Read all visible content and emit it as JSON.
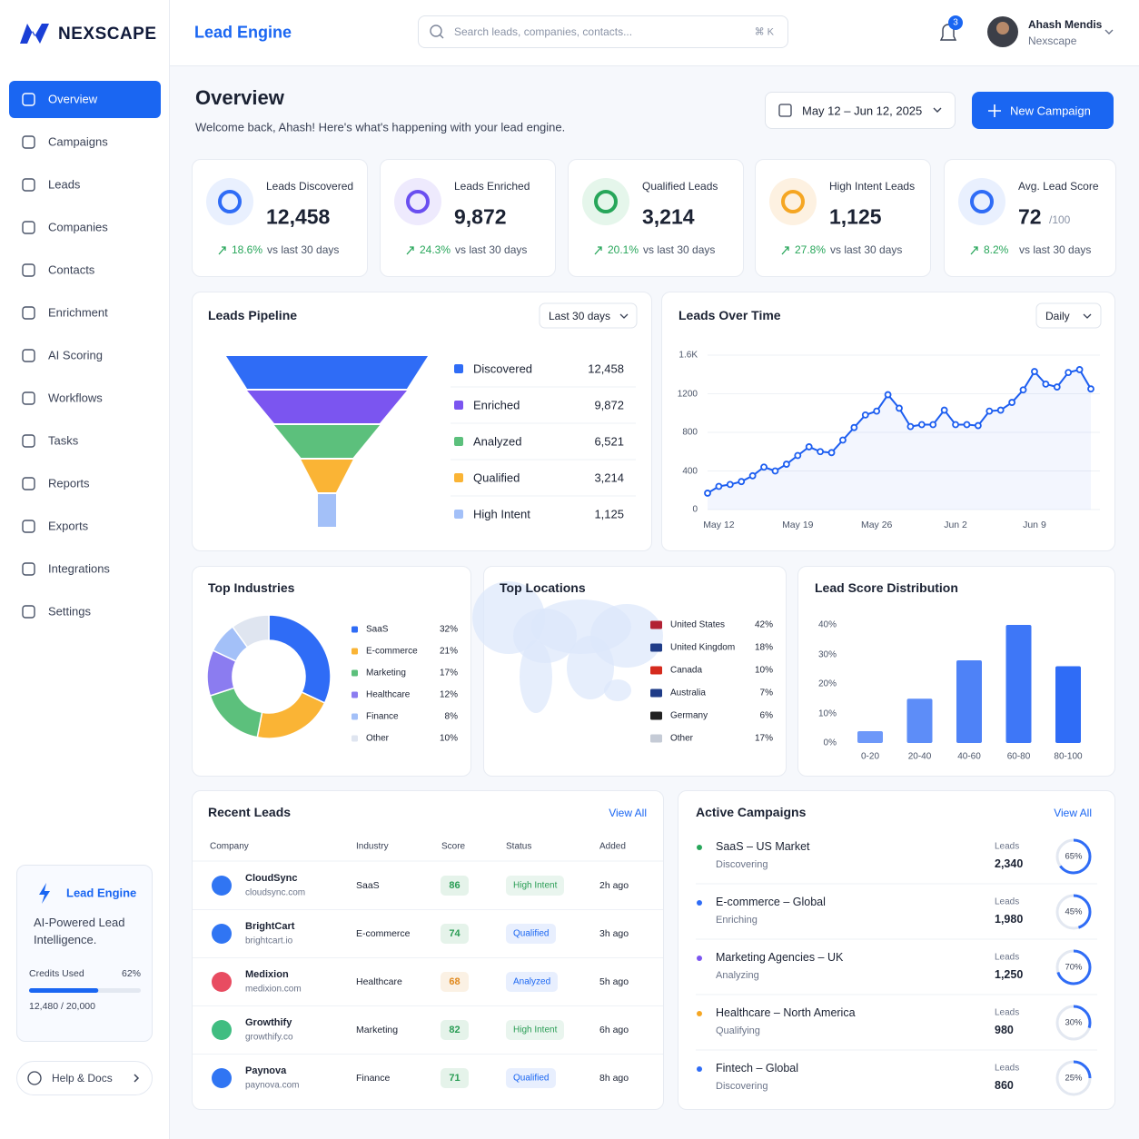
{
  "brand": "NEXSCAPE",
  "header": {
    "title": "Lead Engine",
    "search": "Search leads, companies, contacts...",
    "shortcut": "⌘ K",
    "notifications": "3",
    "user_name": "Ahash Mendis",
    "user_org": "Nexscape"
  },
  "nav": [
    "Overview",
    "Campaigns",
    "Leads",
    "Companies",
    "Contacts",
    "Enrichment",
    "AI Scoring",
    "Workflows",
    "Tasks",
    "Reports",
    "Exports",
    "Integrations",
    "Settings"
  ],
  "promo": {
    "title": "Lead Engine",
    "text": "AI-Powered Lead Intelligence.",
    "credits_label": "Credits Used",
    "credits_used": {
      "value": 62,
      "label": "62%"
    },
    "credits_text": "12,480 / 20,000"
  },
  "help": "Help & Docs",
  "page": {
    "title": "Overview",
    "subtitle": "Welcome back, Ahash! Here's what's happening with your lead engine.",
    "date_range": "May 12 – Jun 12, 2025",
    "new_campaign": "New Campaign"
  },
  "kpis": [
    {
      "label": "Leads Discovered",
      "value": "12,458",
      "change": "18.6%",
      "note": "vs last 30 days",
      "color": "#2f6cf6",
      "bg": "#e9f0fe"
    },
    {
      "label": "Leads Enriched",
      "value": "9,872",
      "change": "24.3%",
      "note": "vs last 30 days",
      "color": "#6a4ff0",
      "bg": "#eeeafd"
    },
    {
      "label": "Qualified Leads",
      "value": "3,214",
      "change": "20.1%",
      "note": "vs last 30 days",
      "color": "#27a65a",
      "bg": "#e5f6eb"
    },
    {
      "label": "High Intent Leads",
      "value": "1,125",
      "change": "27.8%",
      "note": "vs last 30 days",
      "color": "#f5a623",
      "bg": "#fdf1e1"
    },
    {
      "label": "Avg. Lead Score",
      "value": "72",
      "suffix": "/100",
      "change": "8.2%",
      "note": "vs last 30 days",
      "color": "#2f6cf6",
      "bg": "#e9f0fe"
    }
  ],
  "panels": {
    "pipeline_filter": "Last 30 days",
    "over_time_filter": "Daily"
  },
  "chart_data": [
    {
      "type": "funnel",
      "title": "Leads Pipeline",
      "categories": [
        "Discovered",
        "Enriched",
        "Analyzed",
        "Qualified",
        "High Intent"
      ],
      "values": [
        12458,
        9872,
        6521,
        3214,
        1125
      ],
      "value_labels": [
        "12,458",
        "9,872",
        "6,521",
        "3,214",
        "1,125"
      ],
      "colors": [
        "#2f6cf6",
        "#7b55f0",
        "#5cc07c",
        "#fab435",
        "#a3c0f8"
      ]
    },
    {
      "type": "line",
      "title": "Leads Over Time",
      "categories": [
        null,
        "May 12",
        null,
        null,
        null,
        null,
        null,
        null,
        "May 19",
        null,
        null,
        null,
        null,
        null,
        null,
        "May 26",
        null,
        null,
        null,
        null,
        null,
        null,
        "Jun 2",
        null,
        null,
        null,
        null,
        null,
        null,
        "Jun 9",
        null,
        null,
        null,
        null,
        null
      ],
      "values": [
        170,
        240,
        260,
        290,
        350,
        440,
        400,
        470,
        560,
        650,
        600,
        590,
        720,
        850,
        980,
        1020,
        1190,
        1050,
        860,
        880,
        880,
        1030,
        880,
        880,
        870,
        1020,
        1030,
        1110,
        1240,
        1430,
        1300,
        1270,
        1420,
        1450,
        1250
      ],
      "color": "#1d5ef0",
      "ylim": [
        0,
        1600
      ],
      "yticks": [
        0,
        400,
        800,
        1200,
        {
          "value": 1600,
          "label": "1.6K"
        }
      ],
      "grid": true
    },
    {
      "type": "pie",
      "title": "Top Industries",
      "categories": [
        "SaaS",
        "E-commerce",
        "Marketing",
        "Healthcare",
        "Finance",
        "Other"
      ],
      "values": [
        32,
        21,
        17,
        12,
        8,
        10
      ],
      "value_labels": [
        "32%",
        "21%",
        "17%",
        "12%",
        "8%",
        "10%"
      ],
      "colors": [
        "#2f6cf6",
        "#fab435",
        "#5cc07c",
        "#8b7cf0",
        "#a3c0f8",
        "#dfe5f0"
      ]
    },
    {
      "type": "bar",
      "title": "Lead Score Distribution",
      "categories": [
        "0-20",
        "20-40",
        "40-60",
        "60-80",
        "80-100"
      ],
      "values": [
        4,
        15,
        28,
        40,
        26
      ],
      "color": "#2f6cf6",
      "ylim": [
        0,
        40
      ],
      "yticks": [
        {
          "value": 0,
          "label": "0%"
        },
        {
          "value": 10,
          "label": "10%"
        },
        {
          "value": 20,
          "label": "20%"
        },
        {
          "value": 30,
          "label": "30%"
        },
        {
          "value": 40,
          "label": "40%"
        }
      ],
      "grid": false
    }
  ],
  "locations": {
    "title": "Top Locations",
    "rows": [
      {
        "country": "United States",
        "share": "42%"
      },
      {
        "country": "United Kingdom",
        "share": "18%"
      },
      {
        "country": "Canada",
        "share": "10%"
      },
      {
        "country": "Australia",
        "share": "7%"
      },
      {
        "country": "Germany",
        "share": "6%"
      },
      {
        "country": "Other",
        "share": "17%"
      }
    ]
  },
  "recent_leads": {
    "title": "Recent Leads",
    "view_all": "View All",
    "columns": [
      "Company",
      "Industry",
      "Score",
      "Status",
      "Added"
    ],
    "rows": [
      {
        "company": "CloudSync",
        "domain": "cloudsync.com",
        "industry": "SaaS",
        "score": "86",
        "status": "High Intent",
        "added": "2h ago",
        "score_color": "#2a9d55",
        "status_color": "#2a9d55"
      },
      {
        "company": "BrightCart",
        "domain": "brightcart.io",
        "industry": "E-commerce",
        "score": "74",
        "status": "Qualified",
        "added": "3h ago",
        "score_color": "#2a9d55",
        "status_color": "#1a66f2"
      },
      {
        "company": "Medixion",
        "domain": "medixion.com",
        "industry": "Healthcare",
        "score": "68",
        "status": "Analyzed",
        "added": "5h ago",
        "score_color": "#e0891e",
        "status_color": "#1a66f2"
      },
      {
        "company": "Growthify",
        "domain": "growthify.co",
        "industry": "Marketing",
        "score": "82",
        "status": "High Intent",
        "added": "6h ago",
        "score_color": "#2a9d55",
        "status_color": "#2a9d55"
      },
      {
        "company": "Paynova",
        "domain": "paynova.com",
        "industry": "Finance",
        "score": "71",
        "status": "Qualified",
        "added": "8h ago",
        "score_color": "#2a9d55",
        "status_color": "#1a66f2"
      }
    ]
  },
  "campaigns": {
    "title": "Active Campaigns",
    "view_all": "View All",
    "leads_label": "Leads",
    "items": [
      {
        "name": "SaaS – US Market",
        "status": "Discovering",
        "leads": "2,340",
        "progress": {
          "value": 65,
          "label": "65%"
        },
        "color": "#27a65a"
      },
      {
        "name": "E-commerce – Global",
        "status": "Enriching",
        "leads": "1,980",
        "progress": {
          "value": 45,
          "label": "45%"
        },
        "color": "#2f6cf6"
      },
      {
        "name": "Marketing Agencies – UK",
        "status": "Analyzing",
        "leads": "1,250",
        "progress": {
          "value": 70,
          "label": "70%"
        },
        "color": "#7b55f0"
      },
      {
        "name": "Healthcare – North America",
        "status": "Qualifying",
        "leads": "980",
        "progress": {
          "value": 30,
          "label": "30%"
        },
        "color": "#f5a623"
      },
      {
        "name": "Fintech – Global",
        "status": "Discovering",
        "leads": "860",
        "progress": {
          "value": 25,
          "label": "25%"
        },
        "color": "#2f6cf6"
      }
    ]
  }
}
